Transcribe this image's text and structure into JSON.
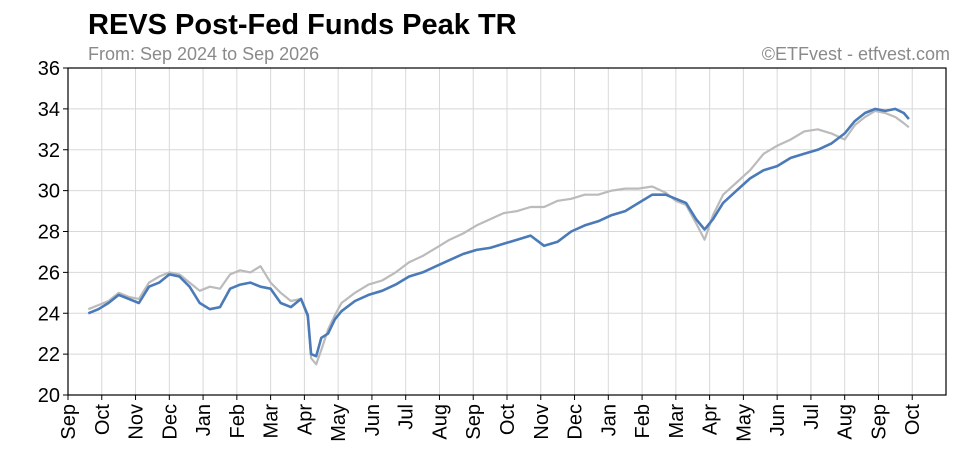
{
  "chart_data": {
    "type": "line",
    "title": "REVS Post-Fed Funds Peak TR",
    "subtitle": "From: Sep 2024 to Sep 2026",
    "credit": "©ETFvest - etfvest.com",
    "xlabel": "",
    "ylabel": "",
    "ylim": [
      20,
      36
    ],
    "yticks": [
      20,
      22,
      24,
      26,
      28,
      30,
      32,
      34,
      36
    ],
    "xticks": [
      "Sep",
      "Oct",
      "Nov",
      "Dec",
      "Jan",
      "Feb",
      "Mar",
      "Apr",
      "May",
      "Jun",
      "Jul",
      "Aug",
      "Sep",
      "Oct",
      "Nov",
      "Dec",
      "Jan",
      "Feb",
      "Mar",
      "Apr",
      "May",
      "Jun",
      "Jul",
      "Aug",
      "Sep",
      "Oct"
    ],
    "x_unit": "months since start of Sep 2024",
    "grid": true,
    "legend": "none",
    "series": [
      {
        "color": "#bbbbbb",
        "points": [
          [
            0.6,
            24.2
          ],
          [
            0.9,
            24.4
          ],
          [
            1.2,
            24.6
          ],
          [
            1.5,
            25.0
          ],
          [
            1.8,
            24.8
          ],
          [
            2.1,
            24.7
          ],
          [
            2.4,
            25.5
          ],
          [
            2.7,
            25.8
          ],
          [
            3.0,
            26.0
          ],
          [
            3.3,
            25.9
          ],
          [
            3.6,
            25.5
          ],
          [
            3.9,
            25.1
          ],
          [
            4.2,
            25.3
          ],
          [
            4.5,
            25.2
          ],
          [
            4.8,
            25.9
          ],
          [
            5.1,
            26.1
          ],
          [
            5.4,
            26.0
          ],
          [
            5.7,
            26.3
          ],
          [
            6.0,
            25.5
          ],
          [
            6.3,
            25.0
          ],
          [
            6.6,
            24.6
          ],
          [
            6.9,
            24.7
          ],
          [
            7.1,
            23.8
          ],
          [
            7.2,
            21.8
          ],
          [
            7.35,
            21.5
          ],
          [
            7.5,
            22.2
          ],
          [
            7.7,
            23.2
          ],
          [
            7.9,
            23.9
          ],
          [
            8.1,
            24.5
          ],
          [
            8.5,
            25.0
          ],
          [
            8.9,
            25.4
          ],
          [
            9.3,
            25.6
          ],
          [
            9.7,
            26.0
          ],
          [
            10.1,
            26.5
          ],
          [
            10.5,
            26.8
          ],
          [
            10.9,
            27.2
          ],
          [
            11.3,
            27.6
          ],
          [
            11.7,
            27.9
          ],
          [
            12.1,
            28.3
          ],
          [
            12.5,
            28.6
          ],
          [
            12.9,
            28.9
          ],
          [
            13.3,
            29.0
          ],
          [
            13.7,
            29.2
          ],
          [
            14.1,
            29.2
          ],
          [
            14.5,
            29.5
          ],
          [
            14.9,
            29.6
          ],
          [
            15.3,
            29.8
          ],
          [
            15.7,
            29.8
          ],
          [
            16.1,
            30.0
          ],
          [
            16.5,
            30.1
          ],
          [
            16.9,
            30.1
          ],
          [
            17.3,
            30.2
          ],
          [
            17.7,
            29.9
          ],
          [
            18.0,
            29.5
          ],
          [
            18.3,
            29.3
          ],
          [
            18.6,
            28.4
          ],
          [
            18.85,
            27.6
          ],
          [
            19.1,
            28.8
          ],
          [
            19.4,
            29.8
          ],
          [
            19.8,
            30.4
          ],
          [
            20.2,
            31.0
          ],
          [
            20.6,
            31.8
          ],
          [
            21.0,
            32.2
          ],
          [
            21.4,
            32.5
          ],
          [
            21.8,
            32.9
          ],
          [
            22.2,
            33.0
          ],
          [
            22.6,
            32.8
          ],
          [
            23.0,
            32.5
          ],
          [
            23.3,
            33.2
          ],
          [
            23.6,
            33.6
          ],
          [
            23.9,
            33.9
          ],
          [
            24.2,
            33.8
          ],
          [
            24.5,
            33.6
          ],
          [
            24.75,
            33.3
          ],
          [
            24.9,
            33.1
          ]
        ]
      },
      {
        "color": "#4a7ab8",
        "points": [
          [
            0.6,
            24.0
          ],
          [
            0.9,
            24.2
          ],
          [
            1.2,
            24.5
          ],
          [
            1.5,
            24.9
          ],
          [
            1.8,
            24.7
          ],
          [
            2.1,
            24.5
          ],
          [
            2.4,
            25.3
          ],
          [
            2.7,
            25.5
          ],
          [
            3.0,
            25.9
          ],
          [
            3.3,
            25.8
          ],
          [
            3.6,
            25.3
          ],
          [
            3.9,
            24.5
          ],
          [
            4.2,
            24.2
          ],
          [
            4.5,
            24.3
          ],
          [
            4.8,
            25.2
          ],
          [
            5.1,
            25.4
          ],
          [
            5.4,
            25.5
          ],
          [
            5.7,
            25.3
          ],
          [
            6.0,
            25.2
          ],
          [
            6.3,
            24.5
          ],
          [
            6.6,
            24.3
          ],
          [
            6.9,
            24.7
          ],
          [
            7.1,
            23.9
          ],
          [
            7.2,
            22.0
          ],
          [
            7.35,
            21.9
          ],
          [
            7.5,
            22.8
          ],
          [
            7.7,
            23.0
          ],
          [
            7.9,
            23.7
          ],
          [
            8.1,
            24.1
          ],
          [
            8.5,
            24.6
          ],
          [
            8.9,
            24.9
          ],
          [
            9.3,
            25.1
          ],
          [
            9.7,
            25.4
          ],
          [
            10.1,
            25.8
          ],
          [
            10.5,
            26.0
          ],
          [
            10.9,
            26.3
          ],
          [
            11.3,
            26.6
          ],
          [
            11.7,
            26.9
          ],
          [
            12.1,
            27.1
          ],
          [
            12.5,
            27.2
          ],
          [
            12.9,
            27.4
          ],
          [
            13.3,
            27.6
          ],
          [
            13.7,
            27.8
          ],
          [
            14.1,
            27.3
          ],
          [
            14.5,
            27.5
          ],
          [
            14.9,
            28.0
          ],
          [
            15.3,
            28.3
          ],
          [
            15.7,
            28.5
          ],
          [
            16.1,
            28.8
          ],
          [
            16.5,
            29.0
          ],
          [
            16.9,
            29.4
          ],
          [
            17.3,
            29.8
          ],
          [
            17.7,
            29.8
          ],
          [
            18.0,
            29.6
          ],
          [
            18.3,
            29.4
          ],
          [
            18.6,
            28.6
          ],
          [
            18.85,
            28.1
          ],
          [
            19.1,
            28.6
          ],
          [
            19.4,
            29.4
          ],
          [
            19.8,
            30.0
          ],
          [
            20.2,
            30.6
          ],
          [
            20.6,
            31.0
          ],
          [
            21.0,
            31.2
          ],
          [
            21.4,
            31.6
          ],
          [
            21.8,
            31.8
          ],
          [
            22.2,
            32.0
          ],
          [
            22.6,
            32.3
          ],
          [
            23.0,
            32.8
          ],
          [
            23.3,
            33.4
          ],
          [
            23.6,
            33.8
          ],
          [
            23.9,
            34.0
          ],
          [
            24.2,
            33.9
          ],
          [
            24.5,
            34.0
          ],
          [
            24.75,
            33.8
          ],
          [
            24.9,
            33.5
          ]
        ]
      }
    ]
  }
}
